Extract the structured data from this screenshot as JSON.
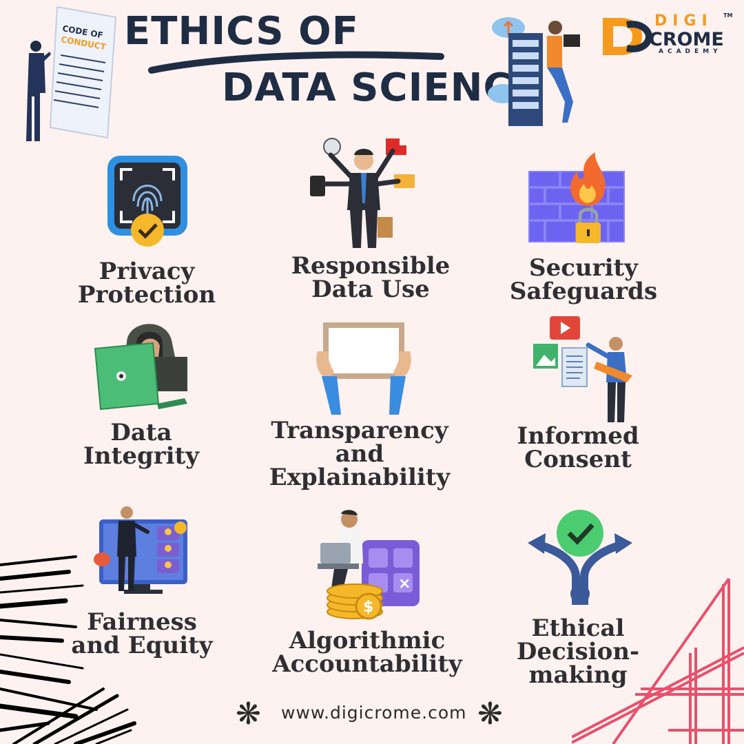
{
  "header": {
    "title_line1": "ETHICS OF",
    "title_line2": "DATA SCIENCE",
    "code_doc_text": "CODE OF CONDUCT"
  },
  "brand": {
    "name_top": "DIGI",
    "name_bottom": "CROME",
    "tagline": "ACADEMY",
    "tm": "TM",
    "accent": "#f59a1c",
    "dark": "#1f2d44"
  },
  "items": [
    {
      "line1": "Privacy",
      "line2": "Protection",
      "icon": "fingerprint-scan-icon"
    },
    {
      "line1": "Responsible",
      "line2": "Data Use",
      "icon": "multitasking-businessman-icon"
    },
    {
      "line1": "Security",
      "line2": "Safeguards",
      "icon": "firewall-icon"
    },
    {
      "line1": "Data",
      "line2": "Integrity",
      "icon": "hooded-hacker-laptop-icon"
    },
    {
      "line1": "Transparency",
      "line2": "and",
      "line3": "Explainability",
      "icon": "hands-holding-frame-icon"
    },
    {
      "line1": "Informed",
      "line2": "Consent",
      "icon": "media-presenter-icon"
    },
    {
      "line1": "Fairness",
      "line2": "and Equity",
      "icon": "video-conference-icon"
    },
    {
      "line1": "Algorithmic",
      "line2": "Accountability",
      "icon": "calculator-laptop-coins-icon"
    },
    {
      "line1": "Ethical",
      "line2": "Decision-",
      "line3": "making",
      "icon": "decision-arrows-check-icon"
    }
  ],
  "footer": {
    "url": "www.digicrome.com",
    "star": "❋"
  },
  "colors": {
    "background": "#fdf2f0",
    "title": "#1f2d44",
    "label": "#2f2f33",
    "pink_lines": "#e8506c"
  }
}
